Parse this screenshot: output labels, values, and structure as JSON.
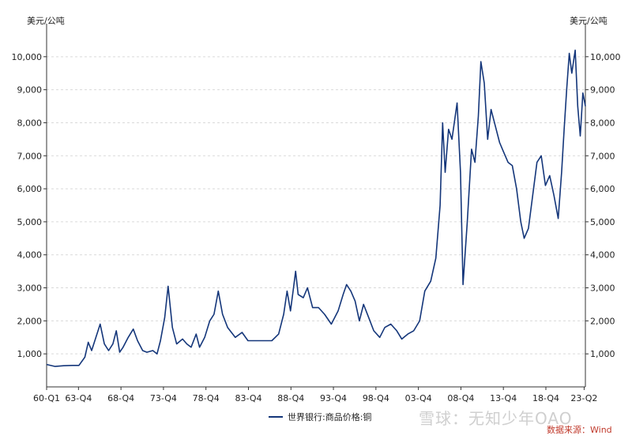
{
  "chart_data": {
    "type": "line",
    "y_unit_left": "美元/公吨",
    "y_unit_right": "美元/公吨",
    "ylim": [
      0,
      11000
    ],
    "y_ticks": [
      "1,000",
      "2,000",
      "3,000",
      "4,000",
      "5,000",
      "6,000",
      "7,000",
      "8,000",
      "9,000",
      "10,000"
    ],
    "x_ticks": [
      "60-Q1",
      "63-Q4",
      "68-Q4",
      "73-Q4",
      "78-Q4",
      "83-Q4",
      "88-Q4",
      "93-Q4",
      "98-Q4",
      "03-Q4",
      "08-Q4",
      "13-Q4",
      "18-Q4",
      "23-Q2"
    ],
    "grid": true,
    "legend_position": "bottom",
    "series": [
      {
        "name": "世界银行:商品价格:铜",
        "color": "#14367a",
        "points": [
          [
            1960.0,
            680
          ],
          [
            1961.0,
            620
          ],
          [
            1962.0,
            640
          ],
          [
            1963.0,
            650
          ],
          [
            1963.8,
            650
          ],
          [
            1964.5,
            900
          ],
          [
            1964.9,
            1350
          ],
          [
            1965.3,
            1100
          ],
          [
            1965.8,
            1500
          ],
          [
            1966.3,
            1900
          ],
          [
            1966.8,
            1300
          ],
          [
            1967.3,
            1100
          ],
          [
            1967.8,
            1300
          ],
          [
            1968.2,
            1700
          ],
          [
            1968.6,
            1050
          ],
          [
            1969.0,
            1200
          ],
          [
            1969.6,
            1500
          ],
          [
            1970.2,
            1750
          ],
          [
            1970.7,
            1400
          ],
          [
            1971.3,
            1100
          ],
          [
            1971.8,
            1050
          ],
          [
            1972.5,
            1100
          ],
          [
            1973.0,
            1000
          ],
          [
            1973.4,
            1400
          ],
          [
            1973.9,
            2100
          ],
          [
            1974.3,
            3050
          ],
          [
            1974.8,
            1800
          ],
          [
            1975.3,
            1300
          ],
          [
            1976.0,
            1450
          ],
          [
            1976.5,
            1300
          ],
          [
            1977.0,
            1200
          ],
          [
            1977.6,
            1600
          ],
          [
            1978.0,
            1200
          ],
          [
            1978.6,
            1500
          ],
          [
            1979.2,
            2000
          ],
          [
            1979.7,
            2200
          ],
          [
            1980.2,
            2900
          ],
          [
            1980.7,
            2200
          ],
          [
            1981.3,
            1800
          ],
          [
            1982.2,
            1500
          ],
          [
            1983.0,
            1650
          ],
          [
            1983.7,
            1400
          ],
          [
            1984.5,
            1400
          ],
          [
            1985.5,
            1400
          ],
          [
            1986.5,
            1400
          ],
          [
            1987.3,
            1600
          ],
          [
            1987.9,
            2200
          ],
          [
            1988.3,
            2900
          ],
          [
            1988.7,
            2300
          ],
          [
            1989.0,
            2900
          ],
          [
            1989.3,
            3500
          ],
          [
            1989.6,
            2800
          ],
          [
            1990.2,
            2700
          ],
          [
            1990.7,
            3000
          ],
          [
            1991.3,
            2400
          ],
          [
            1992.0,
            2400
          ],
          [
            1992.7,
            2200
          ],
          [
            1993.5,
            1900
          ],
          [
            1994.3,
            2300
          ],
          [
            1994.9,
            2800
          ],
          [
            1995.3,
            3100
          ],
          [
            1995.8,
            2900
          ],
          [
            1996.3,
            2600
          ],
          [
            1996.8,
            2000
          ],
          [
            1997.3,
            2500
          ],
          [
            1997.9,
            2100
          ],
          [
            1998.5,
            1700
          ],
          [
            1999.2,
            1500
          ],
          [
            1999.8,
            1800
          ],
          [
            2000.5,
            1900
          ],
          [
            2001.2,
            1700
          ],
          [
            2001.8,
            1450
          ],
          [
            2002.5,
            1600
          ],
          [
            2003.2,
            1700
          ],
          [
            2003.9,
            2000
          ],
          [
            2004.5,
            2900
          ],
          [
            2005.2,
            3200
          ],
          [
            2005.8,
            3900
          ],
          [
            2006.3,
            5500
          ],
          [
            2006.6,
            8000
          ],
          [
            2006.9,
            6500
          ],
          [
            2007.3,
            7800
          ],
          [
            2007.7,
            7500
          ],
          [
            2008.3,
            8600
          ],
          [
            2008.7,
            6500
          ],
          [
            2009.0,
            3100
          ],
          [
            2009.5,
            5000
          ],
          [
            2010.0,
            7200
          ],
          [
            2010.4,
            6800
          ],
          [
            2010.8,
            8200
          ],
          [
            2011.1,
            9850
          ],
          [
            2011.5,
            9200
          ],
          [
            2011.9,
            7500
          ],
          [
            2012.3,
            8400
          ],
          [
            2012.8,
            7900
          ],
          [
            2013.3,
            7400
          ],
          [
            2013.8,
            7100
          ],
          [
            2014.3,
            6800
          ],
          [
            2014.8,
            6700
          ],
          [
            2015.3,
            6000
          ],
          [
            2015.8,
            5000
          ],
          [
            2016.2,
            4500
          ],
          [
            2016.7,
            4800
          ],
          [
            2017.2,
            5800
          ],
          [
            2017.7,
            6800
          ],
          [
            2018.2,
            7000
          ],
          [
            2018.7,
            6100
          ],
          [
            2019.2,
            6400
          ],
          [
            2019.7,
            5800
          ],
          [
            2020.2,
            5100
          ],
          [
            2020.6,
            6500
          ],
          [
            2020.9,
            7800
          ],
          [
            2021.2,
            9000
          ],
          [
            2021.5,
            10100
          ],
          [
            2021.8,
            9500
          ],
          [
            2022.2,
            10200
          ],
          [
            2022.5,
            8500
          ],
          [
            2022.8,
            7600
          ],
          [
            2023.1,
            8900
          ],
          [
            2023.4,
            8500
          ]
        ]
      }
    ]
  },
  "footer": {
    "watermark": "雪球：无知少年OAO",
    "source": "数据来源：Wind"
  }
}
